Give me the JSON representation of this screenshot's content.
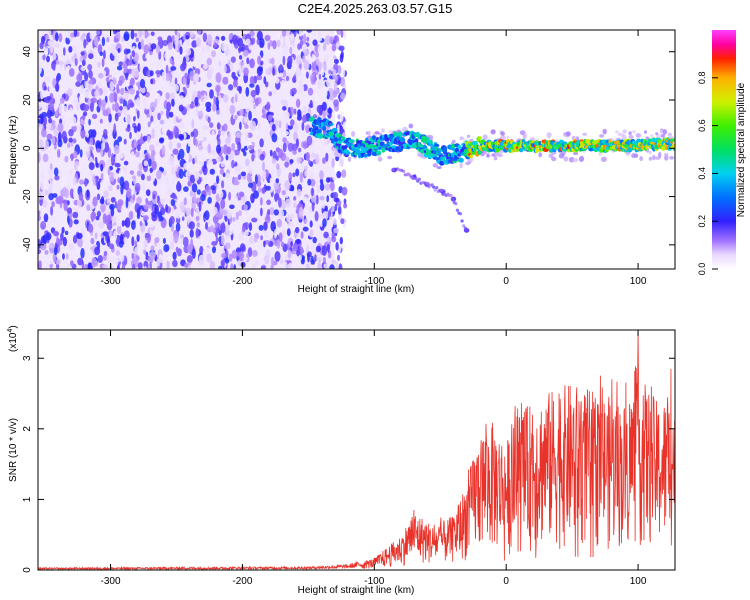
{
  "title": "C2E4.2025.263.03.57.G15",
  "colors": {
    "scatter": "#8a2be2",
    "snr_line": "#e8322a",
    "axis": "#000000"
  },
  "chart_data": [
    {
      "type": "heatmap",
      "name": "spectrogram",
      "xlabel": "Height of straight line (km)",
      "ylabel": "Frequency (Hz)",
      "xlim": [
        -355,
        128
      ],
      "ylim": [
        -50,
        49
      ],
      "xticks": [
        -300,
        -200,
        -100,
        0,
        100
      ],
      "xtick_labels": [
        "-300",
        "-200",
        "-100",
        "0",
        "100"
      ],
      "yticks": [
        -40,
        -20,
        0,
        20,
        40
      ],
      "ytick_labels": [
        "-40",
        "-20",
        "0",
        "20",
        "40"
      ],
      "colorbar": {
        "label": "Normalized spectral amplitude",
        "range": [
          0,
          1
        ],
        "ticks": [
          0.0,
          0.2,
          0.4,
          0.6,
          0.8
        ],
        "tick_labels": [
          "0.0",
          "0.2",
          "0.4",
          "0.6",
          "0.8"
        ]
      },
      "regions": {
        "noise_x_range": [
          -355,
          -130
        ],
        "noise_y_range": [
          -50,
          49
        ],
        "signal_track": [
          {
            "x": -148,
            "f": 9
          },
          {
            "x": -135,
            "f": 8
          },
          {
            "x": -125,
            "f": 1
          },
          {
            "x": -110,
            "f": 0
          },
          {
            "x": -90,
            "f": 2
          },
          {
            "x": -70,
            "f": 4
          },
          {
            "x": -50,
            "f": -3
          },
          {
            "x": -35,
            "f": -2
          },
          {
            "x": -20,
            "f": 1
          },
          {
            "x": 0,
            "f": 1
          },
          {
            "x": 30,
            "f": 1
          },
          {
            "x": 60,
            "f": 1
          },
          {
            "x": 90,
            "f": 1
          },
          {
            "x": 128,
            "f": 2
          }
        ],
        "trail": [
          {
            "x": -85,
            "f": -9
          },
          {
            "x": -70,
            "f": -12
          },
          {
            "x": -60,
            "f": -15
          },
          {
            "x": -48,
            "f": -18
          },
          {
            "x": -40,
            "f": -21
          },
          {
            "x": -30,
            "f": -34
          }
        ]
      }
    },
    {
      "type": "line",
      "name": "snr",
      "xlabel": "Height of straight line (km)",
      "ylabel": "SNR (10 * v/v)",
      "scale_label": "(x10",
      "scale_exp": "4",
      "scale_close": ")",
      "xlim": [
        -355,
        128
      ],
      "ylim": [
        0,
        3.4
      ],
      "xticks": [
        -300,
        -200,
        -100,
        0,
        100
      ],
      "xtick_labels": [
        "-300",
        "-200",
        "-100",
        "0",
        "100"
      ],
      "yticks": [
        0,
        1,
        2,
        3
      ],
      "ytick_labels": [
        "0",
        "1",
        "2",
        "3"
      ],
      "envelope": [
        {
          "x": -355,
          "y": 0.02
        },
        {
          "x": -150,
          "y": 0.03
        },
        {
          "x": -120,
          "y": 0.05
        },
        {
          "x": -100,
          "y": 0.12
        },
        {
          "x": -80,
          "y": 0.35
        },
        {
          "x": -70,
          "y": 0.6
        },
        {
          "x": -55,
          "y": 0.45
        },
        {
          "x": -40,
          "y": 0.55
        },
        {
          "x": -30,
          "y": 0.9
        },
        {
          "x": -20,
          "y": 1.4
        },
        {
          "x": -10,
          "y": 1.5
        },
        {
          "x": 0,
          "y": 1.3
        },
        {
          "x": 10,
          "y": 1.6
        },
        {
          "x": 30,
          "y": 1.8
        },
        {
          "x": 50,
          "y": 1.9
        },
        {
          "x": 70,
          "y": 1.8
        },
        {
          "x": 90,
          "y": 1.7
        },
        {
          "x": 100,
          "y": 2.0
        },
        {
          "x": 115,
          "y": 1.7
        },
        {
          "x": 128,
          "y": 1.8
        }
      ],
      "peaks": [
        {
          "x": -70,
          "y": 0.85
        },
        {
          "x": -25,
          "y": 1.55
        },
        {
          "x": -15,
          "y": 1.9
        },
        {
          "x": 20,
          "y": 2.2
        },
        {
          "x": 40,
          "y": 2.5
        },
        {
          "x": 60,
          "y": 2.45
        },
        {
          "x": 80,
          "y": 2.7
        },
        {
          "x": 100,
          "y": 3.4
        },
        {
          "x": 110,
          "y": 2.6
        },
        {
          "x": 125,
          "y": 2.85
        }
      ]
    }
  ]
}
